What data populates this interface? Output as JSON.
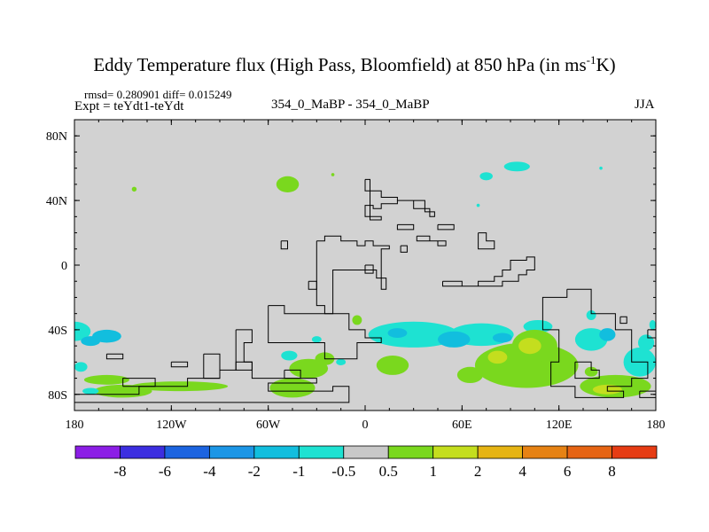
{
  "header": {
    "title_main": "Eddy Temperature flux (High Pass, Bloomfield) at 850 hPa (in ms",
    "title_sup": "-1",
    "title_end": "K)",
    "stats": "rmsd= 0.280901 diff= 0.015249",
    "expt": "Expt = teYdt1-teYdt",
    "center_label": "354_0_MaBP - 354_0_MaBP",
    "season": "JJA"
  },
  "chart_data": {
    "type": "heatmap",
    "x_ticks": [
      "180",
      "120W",
      "60W",
      "0",
      "60E",
      "120E",
      "180"
    ],
    "x_values": [
      -180,
      -120,
      -60,
      0,
      60,
      120,
      180
    ],
    "y_ticks": [
      "80N",
      "40N",
      "0",
      "40S",
      "80S"
    ],
    "y_values": [
      80,
      40,
      0,
      -40,
      -80
    ],
    "xlim": [
      -180,
      180
    ],
    "ylim": [
      -90,
      90
    ],
    "colorbar": {
      "labels": [
        "-8",
        "-6",
        "-4",
        "-2",
        "-1",
        "-0.5",
        "0.5",
        "1",
        "2",
        "4",
        "6",
        "8"
      ],
      "colors": [
        "#8c1ee6",
        "#3c2ee0",
        "#1c64e0",
        "#1c96e6",
        "#12bede",
        "#1ee2d2",
        "#c8c8c8",
        "#7ad81e",
        "#c4de1e",
        "#e6b414",
        "#e68214",
        "#e66414",
        "#e63c14"
      ]
    },
    "background_color": "#d2d2d2",
    "blobs": [
      {
        "lon": -180,
        "lat": -41,
        "rlon": 10,
        "rlat": 6,
        "color": "#1ee2d2"
      },
      {
        "lon": -160,
        "lat": -44,
        "rlon": 9,
        "rlat": 4,
        "color": "#12bede"
      },
      {
        "lon": -170,
        "lat": -47,
        "rlon": 6,
        "rlat": 3,
        "color": "#12bede"
      },
      {
        "lon": -176,
        "lat": -63,
        "rlon": 4,
        "rlat": 3,
        "color": "#1ee2d2"
      },
      {
        "lon": -160,
        "lat": -71,
        "rlon": 14,
        "rlat": 3,
        "color": "#7ad81e"
      },
      {
        "lon": -115,
        "lat": -75,
        "rlon": 30,
        "rlat": 3,
        "color": "#7ad81e"
      },
      {
        "lon": -150,
        "lat": -78,
        "rlon": 18,
        "rlat": 4,
        "color": "#7ad81e"
      },
      {
        "lon": -170,
        "lat": -78,
        "rlon": 5,
        "rlat": 2,
        "color": "#1ee2d2"
      },
      {
        "lon": -45,
        "lat": -76,
        "rlon": 14,
        "rlat": 6,
        "color": "#7ad81e"
      },
      {
        "lon": -35,
        "lat": -64,
        "rlon": 12,
        "rlat": 6,
        "color": "#7ad81e"
      },
      {
        "lon": -25,
        "lat": -58,
        "rlon": 6,
        "rlat": 4,
        "color": "#7ad81e"
      },
      {
        "lon": -5,
        "lat": -34,
        "rlon": 3,
        "rlat": 3,
        "color": "#7ad81e"
      },
      {
        "lon": -47,
        "lat": -56,
        "rlon": 5,
        "rlat": 3,
        "color": "#1ee2d2"
      },
      {
        "lon": -30,
        "lat": -46,
        "rlon": 3,
        "rlat": 2,
        "color": "#1ee2d2"
      },
      {
        "lon": -15,
        "lat": -60,
        "rlon": 3,
        "rlat": 2,
        "color": "#1ee2d2"
      },
      {
        "lon": -48,
        "lat": 50,
        "rlon": 7,
        "rlat": 5,
        "color": "#7ad81e"
      },
      {
        "lon": -143,
        "lat": 47,
        "rlon": 1.5,
        "rlat": 1.5,
        "color": "#7ad81e"
      },
      {
        "lon": -20,
        "lat": 56,
        "rlon": 1,
        "rlat": 1,
        "color": "#7ad81e"
      },
      {
        "lon": 75,
        "lat": 55,
        "rlon": 4,
        "rlat": 2.5,
        "color": "#1ee2d2"
      },
      {
        "lon": 94,
        "lat": 61,
        "rlon": 8,
        "rlat": 3,
        "color": "#1ee2d2"
      },
      {
        "lon": 146,
        "lat": 60,
        "rlon": 1,
        "rlat": 1,
        "color": "#1ee2d2"
      },
      {
        "lon": 70,
        "lat": 37,
        "rlon": 1,
        "rlat": 1,
        "color": "#1ee2d2"
      },
      {
        "lon": 30,
        "lat": -43,
        "rlon": 28,
        "rlat": 8,
        "color": "#1ee2d2"
      },
      {
        "lon": 72,
        "lat": -43,
        "rlon": 20,
        "rlat": 7,
        "color": "#1ee2d2"
      },
      {
        "lon": 55,
        "lat": -46,
        "rlon": 10,
        "rlat": 5,
        "color": "#12bede"
      },
      {
        "lon": 85,
        "lat": -45,
        "rlon": 6,
        "rlat": 3,
        "color": "#12bede"
      },
      {
        "lon": 20,
        "lat": -42,
        "rlon": 6,
        "rlat": 3,
        "color": "#12bede"
      },
      {
        "lon": 107,
        "lat": -38,
        "rlon": 9,
        "rlat": 4,
        "color": "#1ee2d2"
      },
      {
        "lon": 100,
        "lat": -62,
        "rlon": 32,
        "rlat": 14,
        "color": "#7ad81e"
      },
      {
        "lon": 105,
        "lat": -50,
        "rlon": 14,
        "rlat": 10,
        "color": "#7ad81e"
      },
      {
        "lon": 102,
        "lat": -50,
        "rlon": 7,
        "rlat": 5,
        "color": "#c4de1e"
      },
      {
        "lon": 82,
        "lat": -57,
        "rlon": 6,
        "rlat": 4,
        "color": "#c4de1e"
      },
      {
        "lon": 17,
        "lat": -62,
        "rlon": 10,
        "rlat": 6,
        "color": "#7ad81e"
      },
      {
        "lon": 65,
        "lat": -68,
        "rlon": 8,
        "rlat": 5,
        "color": "#7ad81e"
      },
      {
        "lon": 140,
        "lat": -46,
        "rlon": 10,
        "rlat": 7,
        "color": "#1ee2d2"
      },
      {
        "lon": 150,
        "lat": -43,
        "rlon": 5,
        "rlat": 4,
        "color": "#12bede"
      },
      {
        "lon": 170,
        "lat": -60,
        "rlon": 10,
        "rlat": 9,
        "color": "#1ee2d2"
      },
      {
        "lon": 174,
        "lat": -48,
        "rlon": 5,
        "rlat": 5,
        "color": "#1ee2d2"
      },
      {
        "lon": 140,
        "lat": -31,
        "rlon": 3,
        "rlat": 3,
        "color": "#1ee2d2"
      },
      {
        "lon": 155,
        "lat": -75,
        "rlon": 22,
        "rlat": 7,
        "color": "#7ad81e"
      },
      {
        "lon": 150,
        "lat": -77,
        "rlon": 9,
        "rlat": 3,
        "color": "#c4de1e"
      },
      {
        "lon": 140,
        "lat": -66,
        "rlon": 4,
        "rlat": 3,
        "color": "#7ad81e"
      },
      {
        "lon": 178,
        "lat": -37,
        "rlon": 2,
        "rlat": 3,
        "color": "#1ee2d2"
      }
    ],
    "coastlines": [
      [
        [
          0,
          53
        ],
        [
          0,
          46
        ],
        [
          10,
          46
        ],
        [
          10,
          42
        ],
        [
          20,
          42
        ],
        [
          20,
          40
        ],
        [
          30,
          40
        ],
        [
          30,
          35
        ],
        [
          40,
          35
        ],
        [
          40,
          30
        ],
        [
          43,
          30
        ],
        [
          43,
          33
        ],
        [
          37,
          33
        ],
        [
          37,
          40
        ],
        [
          20,
          40
        ],
        [
          20,
          38
        ],
        [
          10,
          38
        ],
        [
          10,
          35
        ],
        [
          5,
          35
        ],
        [
          5,
          37
        ],
        [
          0,
          37
        ],
        [
          0,
          30
        ],
        [
          10,
          30
        ],
        [
          10,
          28
        ],
        [
          3,
          28
        ],
        [
          3,
          53
        ],
        [
          0,
          53
        ]
      ],
      [
        [
          -30,
          15
        ],
        [
          -25,
          15
        ],
        [
          -25,
          18
        ],
        [
          -15,
          18
        ],
        [
          -15,
          15
        ],
        [
          -5,
          15
        ],
        [
          -5,
          12
        ],
        [
          0,
          12
        ],
        [
          0,
          15
        ],
        [
          5,
          15
        ],
        [
          5,
          12
        ],
        [
          15,
          12
        ],
        [
          15,
          10
        ],
        [
          10,
          10
        ],
        [
          10,
          -15
        ],
        [
          13,
          -15
        ],
        [
          13,
          -8
        ],
        [
          7,
          -8
        ],
        [
          7,
          -3
        ],
        [
          -20,
          -3
        ],
        [
          -20,
          -30
        ],
        [
          -25,
          -30
        ],
        [
          -25,
          -25
        ],
        [
          -30,
          -25
        ],
        [
          -30,
          15
        ]
      ],
      [
        [
          0,
          0
        ],
        [
          5,
          0
        ],
        [
          5,
          -5
        ],
        [
          0,
          -5
        ],
        [
          0,
          0
        ]
      ],
      [
        [
          -35,
          -10
        ],
        [
          -30,
          -10
        ],
        [
          -30,
          -15
        ],
        [
          -35,
          -15
        ],
        [
          -35,
          -10
        ]
      ],
      [
        [
          32,
          18
        ],
        [
          40,
          18
        ],
        [
          40,
          15
        ],
        [
          45,
          15
        ],
        [
          45,
          12
        ],
        [
          50,
          12
        ],
        [
          50,
          15
        ],
        [
          32,
          15
        ],
        [
          32,
          18
        ]
      ],
      [
        [
          48,
          -10
        ],
        [
          60,
          -10
        ],
        [
          60,
          -13
        ],
        [
          70,
          -13
        ],
        [
          70,
          -10
        ],
        [
          80,
          -10
        ],
        [
          80,
          -7
        ],
        [
          85,
          -7
        ],
        [
          85,
          -3
        ],
        [
          90,
          -3
        ],
        [
          90,
          3
        ],
        [
          100,
          3
        ],
        [
          100,
          5
        ],
        [
          105,
          5
        ],
        [
          105,
          -3
        ],
        [
          100,
          -3
        ],
        [
          100,
          -6
        ],
        [
          95,
          -6
        ],
        [
          95,
          -10
        ],
        [
          85,
          -10
        ],
        [
          85,
          -13
        ],
        [
          48,
          -13
        ],
        [
          48,
          -10
        ]
      ],
      [
        [
          -60,
          -25
        ],
        [
          -50,
          -25
        ],
        [
          -50,
          -30
        ],
        [
          -10,
          -30
        ],
        [
          -10,
          -40
        ],
        [
          0,
          -40
        ],
        [
          0,
          -45
        ],
        [
          10,
          -45
        ],
        [
          10,
          -48
        ],
        [
          -5,
          -48
        ],
        [
          -5,
          -58
        ],
        [
          -25,
          -58
        ],
        [
          -25,
          -48
        ],
        [
          -60,
          -48
        ],
        [
          -60,
          -25
        ]
      ],
      [
        [
          -80,
          -40
        ],
        [
          -70,
          -40
        ],
        [
          -70,
          -48
        ],
        [
          -75,
          -48
        ],
        [
          -75,
          -60
        ],
        [
          -70,
          -60
        ],
        [
          -70,
          -65
        ],
        [
          -80,
          -65
        ],
        [
          -80,
          -40
        ]
      ],
      [
        [
          -100,
          -55
        ],
        [
          -90,
          -55
        ],
        [
          -90,
          -70
        ],
        [
          -100,
          -70
        ],
        [
          -100,
          -55
        ]
      ],
      [
        [
          -180,
          -80
        ],
        [
          -140,
          -80
        ],
        [
          -140,
          -75
        ],
        [
          -110,
          -75
        ],
        [
          -110,
          -70
        ],
        [
          -90,
          -70
        ],
        [
          -90,
          -65
        ],
        [
          -80,
          -65
        ],
        [
          -80,
          -60
        ],
        [
          -70,
          -60
        ],
        [
          -70,
          -70
        ],
        [
          -30,
          -70
        ],
        [
          -30,
          -73
        ],
        [
          -60,
          -73
        ],
        [
          -60,
          -78
        ],
        [
          -20,
          -78
        ],
        [
          -20,
          -75
        ],
        [
          -10,
          -75
        ],
        [
          -10,
          -85
        ],
        [
          -180,
          -85
        ],
        [
          -180,
          -80
        ]
      ],
      [
        [
          -150,
          -75
        ],
        [
          -130,
          -75
        ],
        [
          -130,
          -70
        ],
        [
          -150,
          -70
        ],
        [
          -150,
          -75
        ]
      ],
      [
        [
          -160,
          -55
        ],
        [
          -150,
          -55
        ],
        [
          -150,
          -58
        ],
        [
          -160,
          -58
        ],
        [
          -160,
          -55
        ]
      ],
      [
        [
          -50,
          -65
        ],
        [
          -40,
          -65
        ],
        [
          -40,
          -70
        ],
        [
          -50,
          -70
        ],
        [
          -50,
          -65
        ]
      ],
      [
        [
          20,
          25
        ],
        [
          30,
          25
        ],
        [
          30,
          22
        ],
        [
          20,
          22
        ],
        [
          20,
          25
        ]
      ],
      [
        [
          -120,
          -60
        ],
        [
          -110,
          -60
        ],
        [
          -110,
          -63
        ],
        [
          -120,
          -63
        ],
        [
          -120,
          -60
        ]
      ],
      [
        [
          45,
          25
        ],
        [
          55,
          25
        ],
        [
          55,
          22
        ],
        [
          45,
          22
        ],
        [
          45,
          25
        ]
      ],
      [
        [
          70,
          20
        ],
        [
          75,
          20
        ],
        [
          75,
          15
        ],
        [
          80,
          15
        ],
        [
          80,
          10
        ],
        [
          70,
          10
        ],
        [
          70,
          20
        ]
      ],
      [
        [
          125,
          -15
        ],
        [
          140,
          -15
        ],
        [
          140,
          -30
        ],
        [
          155,
          -30
        ],
        [
          155,
          -40
        ],
        [
          165,
          -40
        ],
        [
          165,
          -60
        ],
        [
          175,
          -60
        ],
        [
          175,
          -70
        ],
        [
          165,
          -70
        ],
        [
          165,
          -75
        ],
        [
          150,
          -75
        ],
        [
          150,
          -78
        ],
        [
          160,
          -78
        ],
        [
          160,
          -82
        ],
        [
          130,
          -82
        ],
        [
          130,
          -75
        ],
        [
          115,
          -75
        ],
        [
          115,
          -60
        ],
        [
          120,
          -60
        ],
        [
          120,
          -40
        ],
        [
          110,
          -40
        ],
        [
          110,
          -20
        ],
        [
          125,
          -20
        ],
        [
          125,
          -15
        ]
      ],
      [
        [
          130,
          -60
        ],
        [
          140,
          -60
        ],
        [
          140,
          -65
        ],
        [
          145,
          -65
        ],
        [
          145,
          -70
        ],
        [
          130,
          -70
        ],
        [
          130,
          -60
        ]
      ],
      [
        [
          158,
          -32
        ],
        [
          162,
          -32
        ],
        [
          162,
          -36
        ],
        [
          158,
          -36
        ],
        [
          158,
          -32
        ]
      ],
      [
        [
          170,
          -78
        ],
        [
          180,
          -78
        ],
        [
          180,
          -82
        ],
        [
          170,
          -82
        ],
        [
          170,
          -78
        ]
      ],
      [
        [
          175,
          -40
        ],
        [
          180,
          -40
        ],
        [
          180,
          -45
        ],
        [
          175,
          -45
        ],
        [
          175,
          -40
        ]
      ],
      [
        [
          -52,
          15
        ],
        [
          -48,
          15
        ],
        [
          -48,
          10
        ],
        [
          -52,
          10
        ],
        [
          -52,
          15
        ]
      ],
      [
        [
          22,
          12
        ],
        [
          26,
          12
        ],
        [
          26,
          8
        ],
        [
          22,
          8
        ],
        [
          22,
          12
        ]
      ]
    ]
  }
}
